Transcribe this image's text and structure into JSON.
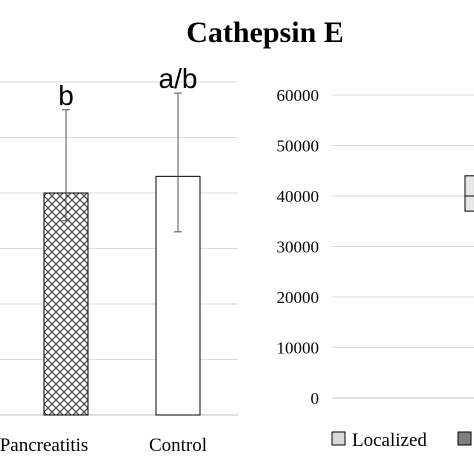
{
  "chart_data": [
    {
      "type": "bar",
      "title": "Cathepsin E",
      "categories": [
        "Pancreatitis",
        "Control"
      ],
      "values": [
        40000,
        43000
      ],
      "error_bars": [
        {
          "low": 35000,
          "high": 55000
        },
        {
          "low": 33000,
          "high": 58000
        }
      ],
      "significance_labels": [
        "b",
        "a/b"
      ],
      "patterns": [
        "crosshatch",
        "none"
      ],
      "ylim": [
        0,
        60000
      ],
      "grid": true
    },
    {
      "type": "bar",
      "y_ticks": [
        "0",
        "10000",
        "20000",
        "30000",
        "40000",
        "50000",
        "60000"
      ],
      "ylim": [
        0,
        60000
      ],
      "grid": true,
      "partial_box": {
        "q1": 37000,
        "median": 40000,
        "q3": 44000
      },
      "legend": {
        "position": "bottom",
        "entries": [
          {
            "label": "Localized",
            "color": "#d9d9d9"
          },
          {
            "label": "",
            "color": "#7f7f7f"
          }
        ]
      }
    }
  ]
}
